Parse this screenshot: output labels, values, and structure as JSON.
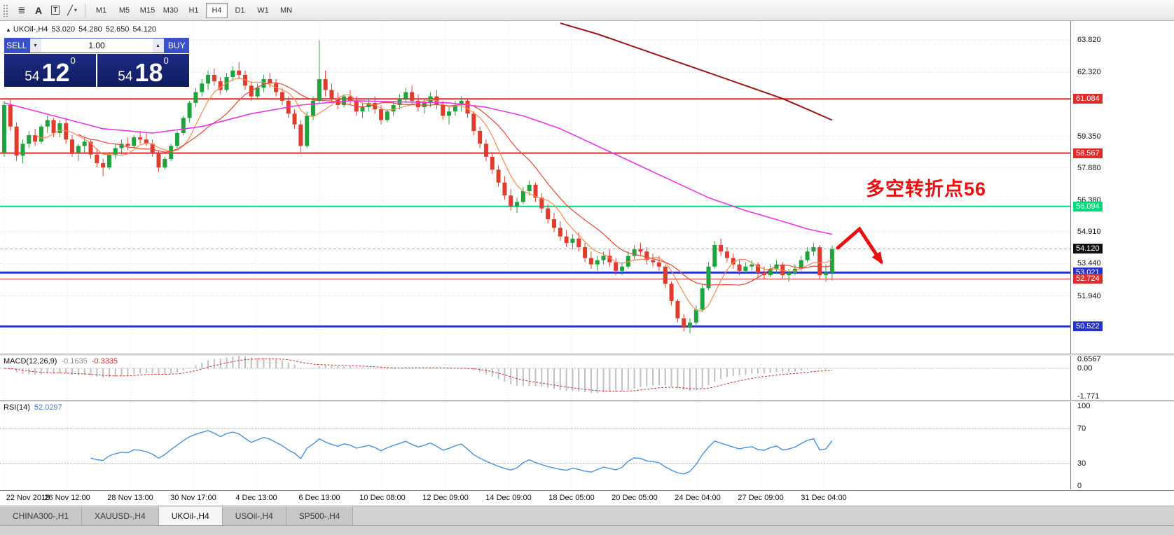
{
  "toolbar": {
    "tools": [
      {
        "name": "cursor-lines",
        "glyph": "≣"
      },
      {
        "name": "text",
        "glyph": "A"
      },
      {
        "name": "label",
        "glyph": "T"
      },
      {
        "name": "draw",
        "glyph": "╱",
        "caret": "▾"
      }
    ],
    "timeframes": [
      "M1",
      "M5",
      "M15",
      "M30",
      "H1",
      "H4",
      "D1",
      "W1",
      "MN"
    ],
    "active_timeframe": "H4"
  },
  "chart": {
    "symbol_line": {
      "collapse_icon": "▲",
      "symbol": "UKOil-,H4",
      "open": "53.020",
      "high": "54.280",
      "low": "52.650",
      "close": "54.120"
    },
    "trade_panel": {
      "sell_label": "SELL",
      "buy_label": "BUY",
      "volume": "1.00",
      "spin_down": "▼",
      "spin_up": "▲",
      "sell_big": "54",
      "sell_pips": "12",
      "sell_sup": "0",
      "buy_big": "54",
      "buy_pips": "18",
      "buy_sup": "0"
    },
    "annotation": {
      "text": "多空转折点56",
      "color": "#e81010"
    },
    "y_axis": {
      "ticks": [
        "63.820",
        "62.320",
        "59.350",
        "57.880",
        "56.380",
        "54.910",
        "53.440",
        "51.940"
      ],
      "tick_values": [
        63.82,
        62.32,
        59.35,
        57.88,
        56.38,
        54.91,
        53.44,
        51.94
      ]
    },
    "current_price": {
      "value": 54.12,
      "label": "54.120",
      "badge_bg": "#101010"
    },
    "levels": [
      {
        "value": 61.084,
        "label": "61.084",
        "color": "#dd2c2c",
        "width": 2
      },
      {
        "value": 58.567,
        "label": "58.567",
        "color": "#dd2c2c",
        "width": 2
      },
      {
        "value": 56.094,
        "label": "56.094",
        "color": "#00d97a",
        "width": 2
      },
      {
        "value": 53.021,
        "label": "53.021",
        "color": "#2433cc",
        "width": 3
      },
      {
        "value": 52.724,
        "label": "52.724",
        "color": "#dd2c2c",
        "width": 1
      },
      {
        "value": 50.522,
        "label": "50.522",
        "color": "#2433cc",
        "width": 3
      }
    ],
    "chart_data": {
      "type": "candlestick",
      "symbol": "UKOil",
      "timeframe": "H4",
      "ylim": [
        49.26,
        64.7
      ],
      "up_color": "#1fa33c",
      "down_color": "#e03c2e",
      "x_labels": [
        "22 Nov 2018",
        "26 Nov 12:00",
        "28 Nov 13:00",
        "30 Nov 17:00",
        "4 Dec 13:00",
        "6 Dec 13:00",
        "10 Dec 08:00",
        "12 Dec 09:00",
        "14 Dec 09:00",
        "18 Dec 05:00",
        "20 Dec 05:00",
        "24 Dec 04:00",
        "27 Dec 09:00",
        "31 Dec 04:00"
      ],
      "candles": [
        [
          58.6,
          61.0,
          58.4,
          60.8
        ],
        [
          60.8,
          61.05,
          59.6,
          59.8
        ],
        [
          59.8,
          60.0,
          58.2,
          58.45
        ],
        [
          58.45,
          59.2,
          58.1,
          59.0
        ],
        [
          59.0,
          59.6,
          58.8,
          59.4
        ],
        [
          59.4,
          59.7,
          58.9,
          59.1
        ],
        [
          59.1,
          59.9,
          59.0,
          59.8
        ],
        [
          59.8,
          60.3,
          59.5,
          60.1
        ],
        [
          60.1,
          60.2,
          59.3,
          59.5
        ],
        [
          59.5,
          60.1,
          59.3,
          59.95
        ],
        [
          59.95,
          60.2,
          59.0,
          59.2
        ],
        [
          59.2,
          59.4,
          58.4,
          58.6
        ],
        [
          58.6,
          59.0,
          58.2,
          58.9
        ],
        [
          58.9,
          59.3,
          58.6,
          59.1
        ],
        [
          59.1,
          59.2,
          58.3,
          58.5
        ],
        [
          58.5,
          58.8,
          57.9,
          58.1
        ],
        [
          58.1,
          58.3,
          57.5,
          57.9
        ],
        [
          57.9,
          58.6,
          57.8,
          58.5
        ],
        [
          58.5,
          59.0,
          58.3,
          58.8
        ],
        [
          58.8,
          59.2,
          58.5,
          59.0
        ],
        [
          59.0,
          59.3,
          58.7,
          58.9
        ],
        [
          58.9,
          59.4,
          58.8,
          59.3
        ],
        [
          59.3,
          59.6,
          59.0,
          59.2
        ],
        [
          59.2,
          59.5,
          58.9,
          59.0
        ],
        [
          59.0,
          59.2,
          58.4,
          58.6
        ],
        [
          58.6,
          58.7,
          57.7,
          57.9
        ],
        [
          57.9,
          58.4,
          57.8,
          58.3
        ],
        [
          58.3,
          59.0,
          58.2,
          58.9
        ],
        [
          58.9,
          59.6,
          58.8,
          59.5
        ],
        [
          59.5,
          60.3,
          59.4,
          60.2
        ],
        [
          60.2,
          61.0,
          60.0,
          60.9
        ],
        [
          60.9,
          61.6,
          60.7,
          61.4
        ],
        [
          61.4,
          62.0,
          61.2,
          61.8
        ],
        [
          61.8,
          62.4,
          61.5,
          62.2
        ],
        [
          62.2,
          62.5,
          61.7,
          61.9
        ],
        [
          61.9,
          62.1,
          61.3,
          61.5
        ],
        [
          61.5,
          62.3,
          61.4,
          62.1
        ],
        [
          62.1,
          62.6,
          61.9,
          62.4
        ],
        [
          62.4,
          62.8,
          62.0,
          62.2
        ],
        [
          62.2,
          62.4,
          61.5,
          61.7
        ],
        [
          61.7,
          61.9,
          61.0,
          61.2
        ],
        [
          61.2,
          61.8,
          61.1,
          61.6
        ],
        [
          61.6,
          62.2,
          61.4,
          62.0
        ],
        [
          62.0,
          62.3,
          61.6,
          61.8
        ],
        [
          61.8,
          62.0,
          61.2,
          61.4
        ],
        [
          61.4,
          61.6,
          60.8,
          61.0
        ],
        [
          61.0,
          61.2,
          60.2,
          60.4
        ],
        [
          60.4,
          60.6,
          59.7,
          59.9
        ],
        [
          59.9,
          60.1,
          58.6,
          58.9
        ],
        [
          58.9,
          60.5,
          58.8,
          60.3
        ],
        [
          60.3,
          61.2,
          60.1,
          61.0
        ],
        [
          61.0,
          63.8,
          60.9,
          62.0
        ],
        [
          62.0,
          62.4,
          61.2,
          61.5
        ],
        [
          61.5,
          61.8,
          60.9,
          61.1
        ],
        [
          61.1,
          61.4,
          60.6,
          60.8
        ],
        [
          60.8,
          61.3,
          60.7,
          61.2
        ],
        [
          61.2,
          61.5,
          60.8,
          61.0
        ],
        [
          61.0,
          61.2,
          60.3,
          60.5
        ],
        [
          60.5,
          60.9,
          60.2,
          60.7
        ],
        [
          60.7,
          61.1,
          60.5,
          60.9
        ],
        [
          60.9,
          61.2,
          60.4,
          60.6
        ],
        [
          60.6,
          60.8,
          59.9,
          60.1
        ],
        [
          60.1,
          60.6,
          60.0,
          60.5
        ],
        [
          60.5,
          61.0,
          60.3,
          60.8
        ],
        [
          60.8,
          61.3,
          60.6,
          61.1
        ],
        [
          61.1,
          61.6,
          60.9,
          61.4
        ],
        [
          61.4,
          61.7,
          60.8,
          61.0
        ],
        [
          61.0,
          61.3,
          60.5,
          60.7
        ],
        [
          60.7,
          61.1,
          60.4,
          60.9
        ],
        [
          60.9,
          61.4,
          60.7,
          61.2
        ],
        [
          61.2,
          61.5,
          60.6,
          60.8
        ],
        [
          60.8,
          61.0,
          60.1,
          60.3
        ],
        [
          60.3,
          60.7,
          59.9,
          60.5
        ],
        [
          60.5,
          61.0,
          60.3,
          60.8
        ],
        [
          60.8,
          61.2,
          60.5,
          61.0
        ],
        [
          61.0,
          61.1,
          60.2,
          60.4
        ],
        [
          60.4,
          60.5,
          59.4,
          59.6
        ],
        [
          59.6,
          59.8,
          58.8,
          59.0
        ],
        [
          59.0,
          59.2,
          58.2,
          58.4
        ],
        [
          58.4,
          58.6,
          57.6,
          57.8
        ],
        [
          57.8,
          58.0,
          57.0,
          57.2
        ],
        [
          57.2,
          57.5,
          56.4,
          56.6
        ],
        [
          56.6,
          56.9,
          55.9,
          56.1
        ],
        [
          56.1,
          56.5,
          55.8,
          56.3
        ],
        [
          56.3,
          57.0,
          56.2,
          56.8
        ],
        [
          56.8,
          57.3,
          56.6,
          57.1
        ],
        [
          57.1,
          57.2,
          56.3,
          56.5
        ],
        [
          56.5,
          56.7,
          55.8,
          56.0
        ],
        [
          56.0,
          56.2,
          55.3,
          55.5
        ],
        [
          55.5,
          55.8,
          54.9,
          55.1
        ],
        [
          55.1,
          55.4,
          54.5,
          54.7
        ],
        [
          54.7,
          55.0,
          54.2,
          54.4
        ],
        [
          54.4,
          54.8,
          54.1,
          54.6
        ],
        [
          54.6,
          54.9,
          54.0,
          54.2
        ],
        [
          54.2,
          54.4,
          53.5,
          53.7
        ],
        [
          53.7,
          54.0,
          53.2,
          53.4
        ],
        [
          53.4,
          53.8,
          53.1,
          53.6
        ],
        [
          53.6,
          54.0,
          53.4,
          53.8
        ],
        [
          53.8,
          54.1,
          53.3,
          53.5
        ],
        [
          53.5,
          53.7,
          52.9,
          53.1
        ],
        [
          53.1,
          53.5,
          52.9,
          53.3
        ],
        [
          53.3,
          54.0,
          53.2,
          53.8
        ],
        [
          53.8,
          54.3,
          53.6,
          54.1
        ],
        [
          54.1,
          54.4,
          53.8,
          54.0
        ],
        [
          54.0,
          54.2,
          53.4,
          53.6
        ],
        [
          53.6,
          53.9,
          53.3,
          53.5
        ],
        [
          53.5,
          53.8,
          53.1,
          53.3
        ],
        [
          53.3,
          53.4,
          52.3,
          52.5
        ],
        [
          52.5,
          52.6,
          51.5,
          51.7
        ],
        [
          51.7,
          51.8,
          50.7,
          50.9
        ],
        [
          50.9,
          51.1,
          50.3,
          50.5
        ],
        [
          50.5,
          50.9,
          50.2,
          50.7
        ],
        [
          50.7,
          51.5,
          50.6,
          51.3
        ],
        [
          51.3,
          52.5,
          51.2,
          52.3
        ],
        [
          52.3,
          53.5,
          52.2,
          53.3
        ],
        [
          53.3,
          54.5,
          53.2,
          54.3
        ],
        [
          54.3,
          54.6,
          53.8,
          54.0
        ],
        [
          54.0,
          54.2,
          53.5,
          53.7
        ],
        [
          53.7,
          53.9,
          53.2,
          53.4
        ],
        [
          53.4,
          53.6,
          52.9,
          53.1
        ],
        [
          53.1,
          53.5,
          53.0,
          53.3
        ],
        [
          53.3,
          53.6,
          53.1,
          53.4
        ],
        [
          53.4,
          53.5,
          52.8,
          53.0
        ],
        [
          53.0,
          53.3,
          52.7,
          52.9
        ],
        [
          52.9,
          53.4,
          52.8,
          53.2
        ],
        [
          53.2,
          53.6,
          53.0,
          53.4
        ],
        [
          53.4,
          53.5,
          52.7,
          52.9
        ],
        [
          52.9,
          53.2,
          52.6,
          53.0
        ],
        [
          53.0,
          53.4,
          52.9,
          53.2
        ],
        [
          53.2,
          53.8,
          53.1,
          53.6
        ],
        [
          53.6,
          54.2,
          53.5,
          54.0
        ],
        [
          54.0,
          54.4,
          53.8,
          54.2
        ],
        [
          54.2,
          54.3,
          52.7,
          52.9
        ],
        [
          52.9,
          53.4,
          52.6,
          53.02
        ],
        [
          53.02,
          54.28,
          52.65,
          54.12
        ]
      ],
      "moving_averages": [
        {
          "name": "ma-fast",
          "style": "sma",
          "period": 6,
          "color": "#ff8a50",
          "width": 1.2
        },
        {
          "name": "ma-mid",
          "style": "sma",
          "period": 13,
          "color": "#e04838",
          "width": 1.2
        },
        {
          "name": "ma-slow",
          "style": "points",
          "color": "#e637e6",
          "width": 1.6,
          "points": [
            [
              0,
              60.9
            ],
            [
              8,
              60.3
            ],
            [
              16,
              59.7
            ],
            [
              24,
              59.5
            ],
            [
              32,
              59.8
            ],
            [
              40,
              60.4
            ],
            [
              48,
              60.8
            ],
            [
              56,
              61.0
            ],
            [
              64,
              60.95
            ],
            [
              72,
              60.9
            ],
            [
              78,
              60.7
            ],
            [
              84,
              60.3
            ],
            [
              90,
              59.7
            ],
            [
              96,
              58.9
            ],
            [
              102,
              58.1
            ],
            [
              108,
              57.3
            ],
            [
              114,
              56.5
            ],
            [
              120,
              55.9
            ],
            [
              126,
              55.4
            ],
            [
              130,
              55.05
            ],
            [
              134,
              54.8
            ]
          ]
        },
        {
          "name": "ma-long",
          "style": "points",
          "color": "#9c1515",
          "width": 2,
          "points": [
            [
              90,
              64.6
            ],
            [
              96,
              64.1
            ],
            [
              102,
              63.5
            ],
            [
              108,
              62.9
            ],
            [
              114,
              62.3
            ],
            [
              120,
              61.7
            ],
            [
              126,
              61.1
            ],
            [
              130,
              60.6
            ],
            [
              134,
              60.1
            ]
          ]
        }
      ]
    }
  },
  "macd": {
    "label": "MACD(12,26,9)",
    "value_main": "-0.1635",
    "value_signal": "-0.3335",
    "axis": [
      "0.6567",
      "0.00",
      "-1.771"
    ],
    "axis_values": [
      0.6567,
      0,
      -1.771
    ],
    "ylim": [
      -2.0,
      0.8
    ],
    "params": {
      "fast": 12,
      "slow": 26,
      "signal": 9
    },
    "colors": {
      "hist": "#c0c0c0",
      "signal": "#cc3333"
    }
  },
  "rsi": {
    "label": "RSI(14)",
    "value": "52.0297",
    "period": 14,
    "axis": [
      "100",
      "70",
      "30",
      "0"
    ],
    "axis_values": [
      100,
      70,
      30,
      0
    ],
    "levels": [
      70,
      30
    ],
    "ylim": [
      0,
      100
    ],
    "color": "#4a90d9"
  },
  "tabs": [
    {
      "label": "CHINA300-,H1",
      "active": false
    },
    {
      "label": "XAUUSD-,H4",
      "active": false
    },
    {
      "label": "UKOil-,H4",
      "active": true
    },
    {
      "label": "USOil-,H4",
      "active": false
    },
    {
      "label": "SP500-,H4",
      "active": false
    }
  ]
}
